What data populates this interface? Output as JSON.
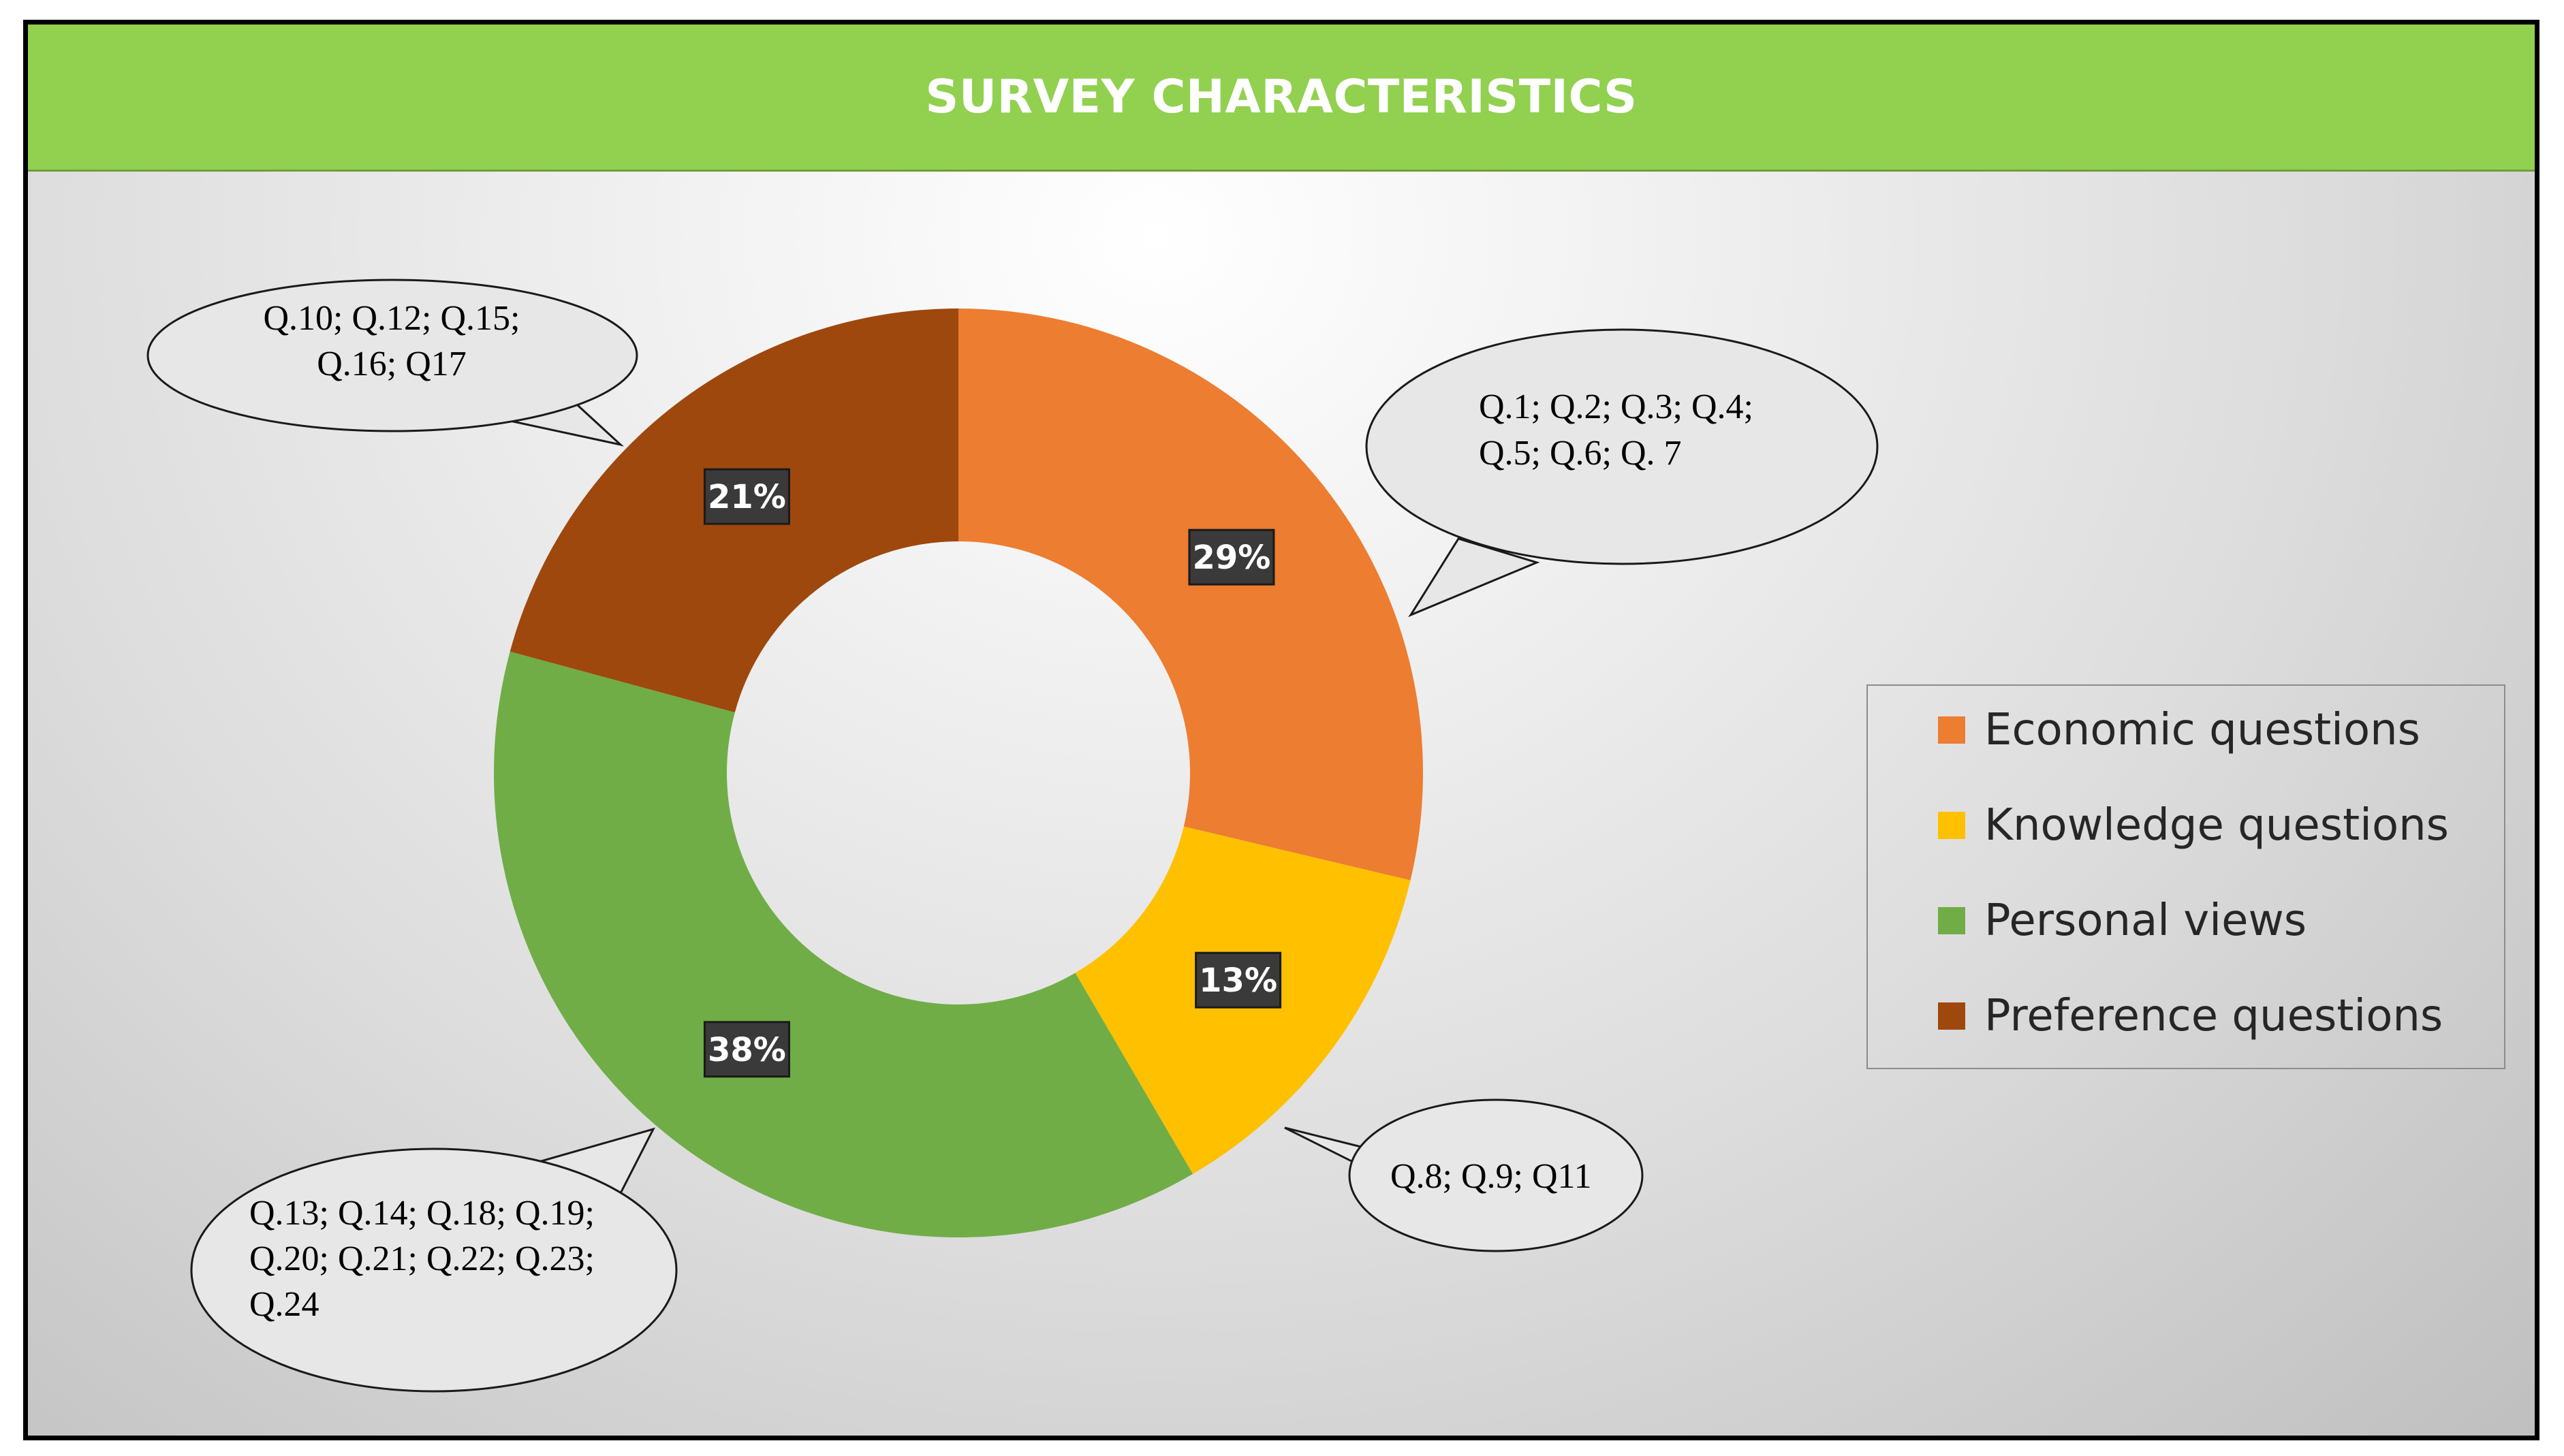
{
  "chart_data": {
    "type": "pie",
    "variant": "donut",
    "title": "SURVEY CHARACTERISTICS",
    "header_color": "#92d050",
    "categories": [
      "Economic questions",
      "Knowledge questions",
      "Personal views",
      "Preference questions"
    ],
    "values": [
      29,
      13,
      38,
      21
    ],
    "labels": [
      "29%",
      "13%",
      "38%",
      "21%"
    ],
    "colors": [
      "#ed7d31",
      "#ffc000",
      "#70ad47",
      "#9e480e"
    ],
    "callouts": [
      [
        "Q.1; Q.2; Q.3; Q.4;",
        "Q.5; Q.6; Q. 7"
      ],
      [
        "Q.8; Q.9; Q11"
      ],
      [
        "Q.13; Q.14; Q.18; Q.19;",
        "Q.20; Q.21; Q.22; Q.23;",
        "Q.24"
      ],
      [
        "Q.10; Q.12; Q.15;",
        "Q.16; Q17"
      ]
    ],
    "legend_position": "right"
  }
}
